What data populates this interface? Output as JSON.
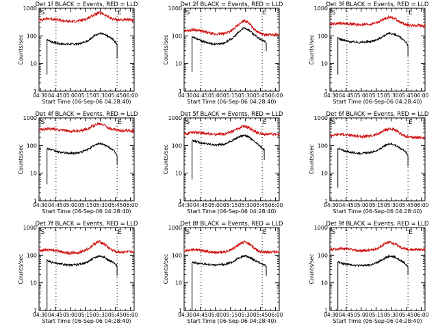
{
  "chart_data": [
    {
      "type": "line",
      "title": "Det 1f BLACK = Events, RED = LLD",
      "xlabel": "Start Time (06-Sep-06 04:28:40)",
      "ylabel": "Counts/sec",
      "x_ticks": [
        "04:30",
        "04:45",
        "05:00",
        "05:15",
        "05:30",
        "05:45",
        "06:00"
      ],
      "y_ticks": [
        "1",
        "10",
        "100",
        "1000"
      ],
      "ylim": [
        1,
        1000
      ],
      "yscale": "log",
      "xlim_minutes": [
        0,
        95
      ],
      "markers": [
        {
          "label": "S",
          "x": 1
        },
        {
          "label": "E",
          "x": 78
        }
      ],
      "dotted_lines_x": [
        17,
        78
      ],
      "series": [
        {
          "name": "Events",
          "color": "#000000",
          "start": 8,
          "start_low": 4,
          "end": 78,
          "end_low": 15,
          "x": [
            8,
            12,
            20,
            30,
            40,
            48,
            55,
            60,
            65,
            70,
            74,
            78
          ],
          "y": [
            75,
            62,
            52,
            50,
            52,
            65,
            100,
            125,
            112,
            90,
            75,
            50
          ]
        },
        {
          "name": "LLD",
          "color": "#d01010",
          "x": [
            0,
            10,
            20,
            30,
            40,
            48,
            55,
            60,
            65,
            70,
            75,
            80,
            95
          ],
          "y": [
            380,
            430,
            370,
            330,
            350,
            420,
            580,
            680,
            600,
            460,
            400,
            380,
            370
          ]
        }
      ]
    },
    {
      "type": "line",
      "title": "Det 2f BLACK = Events, RED = LLD",
      "xlabel": "Start Time (06-Sep-06 04:28:40)",
      "ylabel": "Counts/sec",
      "x_ticks": [
        "04:30",
        "04:45",
        "05:00",
        "05:15",
        "05:30",
        "05:45",
        "06:00"
      ],
      "y_ticks": [
        "1",
        "10",
        "100",
        "1000"
      ],
      "ylim": [
        1,
        1000
      ],
      "yscale": "log",
      "xlim_minutes": [
        0,
        95
      ],
      "markers": [
        {
          "label": "S",
          "x": 1
        },
        {
          "label": "E",
          "x": 78
        }
      ],
      "dotted_lines_x": [
        17,
        78
      ],
      "series": [
        {
          "name": "Events",
          "color": "#000000",
          "start": 8,
          "start_low": 5,
          "end": 82,
          "end_low": 28,
          "x": [
            8,
            12,
            20,
            30,
            40,
            48,
            55,
            60,
            65,
            70,
            75,
            80,
            82
          ],
          "y": [
            95,
            80,
            60,
            50,
            55,
            80,
            140,
            200,
            160,
            110,
            80,
            65,
            55
          ]
        },
        {
          "name": "LLD",
          "color": "#d01010",
          "x": [
            0,
            10,
            20,
            30,
            40,
            48,
            55,
            60,
            65,
            70,
            75,
            80,
            95
          ],
          "y": [
            150,
            170,
            140,
            115,
            120,
            160,
            260,
            360,
            300,
            170,
            130,
            110,
            110
          ]
        }
      ]
    },
    {
      "type": "line",
      "title": "Det 3f BLACK = Events, RED = LLD",
      "xlabel": "Start Time (06-Sep-06 04:28:40)",
      "ylabel": "Counts/sec",
      "x_ticks": [
        "04:30",
        "04:45",
        "05:00",
        "05:15",
        "05:30",
        "05:45",
        "06:00"
      ],
      "y_ticks": [
        "1",
        "10",
        "100",
        "1000"
      ],
      "ylim": [
        1,
        1000
      ],
      "yscale": "log",
      "xlim_minutes": [
        0,
        95
      ],
      "markers": [
        {
          "label": "S",
          "x": 1
        },
        {
          "label": "E",
          "x": 78
        }
      ],
      "dotted_lines_x": [
        17,
        78
      ],
      "series": [
        {
          "name": "Events",
          "color": "#000000",
          "start": 8,
          "start_low": 4,
          "end": 78,
          "end_low": 18,
          "x": [
            8,
            12,
            20,
            30,
            40,
            48,
            55,
            60,
            65,
            70,
            74,
            78
          ],
          "y": [
            85,
            72,
            62,
            58,
            62,
            75,
            105,
            125,
            110,
            88,
            72,
            45
          ]
        },
        {
          "name": "LLD",
          "color": "#d01010",
          "x": [
            0,
            10,
            20,
            30,
            40,
            48,
            55,
            60,
            65,
            70,
            75,
            80,
            95
          ],
          "y": [
            270,
            290,
            270,
            250,
            260,
            310,
            430,
            480,
            420,
            320,
            260,
            240,
            230
          ]
        }
      ]
    },
    {
      "type": "line",
      "title": "Det 4f BLACK = Events, RED = LLD",
      "xlabel": "Start Time (06-Sep-06 04:28:40)",
      "ylabel": "Counts/sec",
      "x_ticks": [
        "04:30",
        "04:45",
        "05:00",
        "05:15",
        "05:30",
        "05:45",
        "06:00"
      ],
      "y_ticks": [
        "1",
        "10",
        "100",
        "1000"
      ],
      "ylim": [
        1,
        1000
      ],
      "yscale": "log",
      "xlim_minutes": [
        0,
        95
      ],
      "markers": [
        {
          "label": "S",
          "x": 1
        },
        {
          "label": "E",
          "x": 78
        }
      ],
      "dotted_lines_x": [
        17,
        78
      ],
      "series": [
        {
          "name": "Events",
          "color": "#000000",
          "start": 8,
          "start_low": 4,
          "end": 78,
          "end_low": 20,
          "x": [
            8,
            12,
            20,
            30,
            40,
            48,
            55,
            60,
            65,
            70,
            74,
            78
          ],
          "y": [
            80,
            70,
            58,
            52,
            55,
            70,
            100,
            120,
            108,
            85,
            70,
            45
          ]
        },
        {
          "name": "LLD",
          "color": "#d01010",
          "x": [
            0,
            10,
            20,
            30,
            40,
            48,
            55,
            60,
            65,
            70,
            75,
            80,
            95
          ],
          "y": [
            370,
            400,
            370,
            330,
            340,
            400,
            540,
            620,
            560,
            430,
            380,
            350,
            340
          ]
        }
      ]
    },
    {
      "type": "line",
      "title": "Det 5f BLACK = Events, RED = LLD",
      "xlabel": "Start Time (06-Sep-06 04:28:40)",
      "ylabel": "Counts/sec",
      "x_ticks": [
        "04:30",
        "04:45",
        "05:00",
        "05:15",
        "05:30",
        "05:45",
        "06:00"
      ],
      "y_ticks": [
        "1",
        "10",
        "100",
        "1000"
      ],
      "ylim": [
        1,
        1000
      ],
      "yscale": "log",
      "xlim_minutes": [
        0,
        95
      ],
      "markers": [
        {
          "label": "S",
          "x": 1
        },
        {
          "label": "E",
          "x": 78
        }
      ],
      "dotted_lines_x": [
        17,
        78
      ],
      "series": [
        {
          "name": "Events",
          "color": "#000000",
          "start": 8,
          "start_low": 6,
          "end": 80,
          "end_low": 30,
          "x": [
            8,
            12,
            20,
            30,
            40,
            48,
            55,
            60,
            65,
            70,
            75,
            80
          ],
          "y": [
            150,
            140,
            120,
            105,
            110,
            150,
            210,
            240,
            200,
            140,
            100,
            70
          ]
        },
        {
          "name": "LLD",
          "color": "#d01010",
          "x": [
            0,
            10,
            20,
            30,
            40,
            48,
            55,
            60,
            65,
            70,
            75,
            80,
            95
          ],
          "y": [
            260,
            300,
            280,
            250,
            260,
            320,
            430,
            500,
            440,
            330,
            280,
            260,
            250
          ]
        }
      ]
    },
    {
      "type": "line",
      "title": "Det 6f BLACK = Events, RED = LLD",
      "xlabel": "Start Time (06-Sep-06 04:28:40)",
      "ylabel": "Counts/sec",
      "x_ticks": [
        "04:30",
        "04:45",
        "05:00",
        "05:15",
        "05:30",
        "05:45",
        "06:00"
      ],
      "y_ticks": [
        "1",
        "10",
        "100",
        "1000"
      ],
      "ylim": [
        1,
        1000
      ],
      "yscale": "log",
      "xlim_minutes": [
        0,
        95
      ],
      "markers": [
        {
          "label": "S",
          "x": 1
        },
        {
          "label": "E",
          "x": 78
        }
      ],
      "dotted_lines_x": [
        17,
        78
      ],
      "series": [
        {
          "name": "Events",
          "color": "#000000",
          "start": 8,
          "start_low": 3,
          "end": 78,
          "end_low": 18,
          "x": [
            8,
            12,
            20,
            30,
            40,
            48,
            55,
            60,
            65,
            70,
            74,
            78
          ],
          "y": [
            80,
            68,
            58,
            52,
            55,
            68,
            98,
            118,
            105,
            82,
            68,
            45
          ]
        },
        {
          "name": "LLD",
          "color": "#d01010",
          "x": [
            0,
            10,
            20,
            30,
            40,
            48,
            55,
            60,
            65,
            70,
            75,
            80,
            95
          ],
          "y": [
            230,
            260,
            240,
            210,
            220,
            260,
            360,
            410,
            360,
            270,
            220,
            200,
            190
          ]
        }
      ]
    },
    {
      "type": "line",
      "title": "Det 7f BLACK = Events, RED = LLD",
      "xlabel": "Start Time (06-Sep-06 04:28:40)",
      "ylabel": "Counts/sec",
      "x_ticks": [
        "04:30",
        "04:45",
        "05:00",
        "05:15",
        "05:30",
        "05:45",
        "06:00"
      ],
      "y_ticks": [
        "1",
        "10",
        "100",
        "1000"
      ],
      "ylim": [
        1,
        1000
      ],
      "yscale": "log",
      "xlim_minutes": [
        0,
        95
      ],
      "markers": [
        {
          "label": "S",
          "x": 1
        },
        {
          "label": "E",
          "x": 78
        }
      ],
      "dotted_lines_x": [
        17,
        78
      ],
      "series": [
        {
          "name": "Events",
          "color": "#000000",
          "start": 8,
          "start_low": 1,
          "end": 78,
          "end_low": 18,
          "x": [
            8,
            12,
            20,
            30,
            40,
            48,
            55,
            60,
            65,
            70,
            74,
            78
          ],
          "y": [
            65,
            55,
            48,
            44,
            46,
            56,
            80,
            95,
            85,
            65,
            55,
            40
          ]
        },
        {
          "name": "LLD",
          "color": "#d01010",
          "x": [
            0,
            10,
            20,
            30,
            40,
            48,
            55,
            60,
            65,
            70,
            75,
            80,
            95
          ],
          "y": [
            140,
            160,
            140,
            120,
            125,
            160,
            250,
            310,
            260,
            180,
            140,
            130,
            130
          ]
        }
      ]
    },
    {
      "type": "line",
      "title": "Det 8f BLACK = Events, RED = LLD",
      "xlabel": "Start Time (06-Sep-06 04:28:40)",
      "ylabel": "Counts/sec",
      "x_ticks": [
        "04:30",
        "04:45",
        "05:00",
        "05:15",
        "05:30",
        "05:45",
        "06:00"
      ],
      "y_ticks": [
        "1",
        "10",
        "100",
        "1000"
      ],
      "ylim": [
        1,
        1000
      ],
      "yscale": "log",
      "xlim_minutes": [
        0,
        95
      ],
      "markers": [
        {
          "label": "S",
          "x": 1
        },
        {
          "label": "E",
          "x": 78
        }
      ],
      "dotted_lines_x": [
        17,
        78
      ],
      "series": [
        {
          "name": "Events",
          "color": "#000000",
          "start": 8,
          "start_low": 1,
          "end": 82,
          "end_low": 18,
          "x": [
            8,
            12,
            20,
            30,
            40,
            48,
            55,
            60,
            65,
            70,
            75,
            80,
            82
          ],
          "y": [
            58,
            52,
            48,
            44,
            46,
            56,
            80,
            95,
            85,
            68,
            55,
            45,
            38
          ]
        },
        {
          "name": "LLD",
          "color": "#d01010",
          "x": [
            0,
            10,
            20,
            30,
            40,
            48,
            55,
            60,
            65,
            70,
            75,
            80,
            95
          ],
          "y": [
            145,
            165,
            145,
            125,
            130,
            165,
            250,
            310,
            260,
            180,
            140,
            130,
            135
          ]
        }
      ]
    },
    {
      "type": "line",
      "title": "Det 9f BLACK = Events, RED = LLD",
      "xlabel": "Start Time (06-Sep-06 04:28:40)",
      "ylabel": "Counts/sec",
      "x_ticks": [
        "04:30",
        "04:45",
        "05:00",
        "05:15",
        "05:30",
        "05:45",
        "06:00"
      ],
      "y_ticks": [
        "1",
        "10",
        "100",
        "1000"
      ],
      "ylim": [
        1,
        1000
      ],
      "yscale": "log",
      "xlim_minutes": [
        0,
        95
      ],
      "markers": [
        {
          "label": "S",
          "x": 1
        },
        {
          "label": "E",
          "x": 78
        }
      ],
      "dotted_lines_x": [
        17,
        78
      ],
      "series": [
        {
          "name": "Events",
          "color": "#000000",
          "start": 8,
          "start_low": 1,
          "end": 78,
          "end_low": 20,
          "x": [
            8,
            12,
            20,
            30,
            40,
            48,
            55,
            60,
            65,
            70,
            74,
            78
          ],
          "y": [
            58,
            50,
            46,
            42,
            44,
            55,
            80,
            95,
            85,
            65,
            55,
            40
          ]
        },
        {
          "name": "LLD",
          "color": "#d01010",
          "x": [
            0,
            10,
            20,
            30,
            40,
            48,
            55,
            60,
            65,
            70,
            75,
            80,
            95
          ],
          "y": [
            160,
            175,
            160,
            145,
            150,
            180,
            260,
            300,
            260,
            200,
            170,
            160,
            160
          ]
        }
      ]
    }
  ]
}
